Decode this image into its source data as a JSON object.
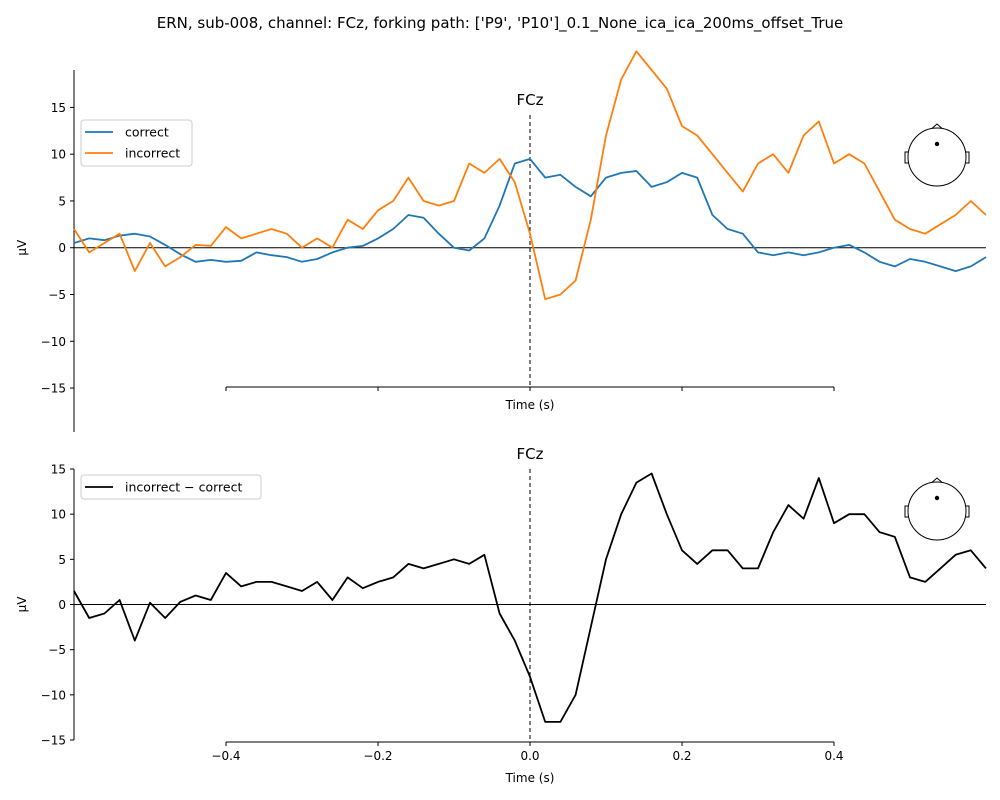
{
  "figure_title": "ERN, sub-008, channel: FCz, forking path: ['P9', 'P10']_0.1_None_ica_ica_200ms_offset_True",
  "chart_data": [
    {
      "type": "line",
      "title": "FCz",
      "xlabel": "Time (s)",
      "ylabel": "µV",
      "xlim": [
        -0.6,
        0.6
      ],
      "ylim": [
        -20,
        20
      ],
      "xticks": [
        -0.4,
        -0.2,
        0.0,
        0.2,
        0.4
      ],
      "xtick_labels": [
        "",
        "",
        "",
        "",
        ""
      ],
      "yticks": [
        -15,
        -10,
        -5,
        0,
        5,
        10,
        15
      ],
      "ytick_labels": [
        "−15",
        "−10",
        "−5",
        "0",
        "5",
        "10",
        "15"
      ],
      "event_marker_x": 0.0,
      "zero_line": true,
      "legend_position": "top-left",
      "sensor_inset": "top-right",
      "series": [
        {
          "name": "correct",
          "color": "#1f77b4",
          "x": [
            -0.6,
            -0.58,
            -0.56,
            -0.54,
            -0.52,
            -0.5,
            -0.48,
            -0.46,
            -0.44,
            -0.42,
            -0.4,
            -0.38,
            -0.36,
            -0.34,
            -0.32,
            -0.3,
            -0.28,
            -0.26,
            -0.24,
            -0.22,
            -0.2,
            -0.18,
            -0.16,
            -0.14,
            -0.12,
            -0.1,
            -0.08,
            -0.06,
            -0.04,
            -0.02,
            0.0,
            0.02,
            0.04,
            0.06,
            0.08,
            0.1,
            0.12,
            0.14,
            0.16,
            0.18,
            0.2,
            0.22,
            0.24,
            0.26,
            0.28,
            0.3,
            0.32,
            0.34,
            0.36,
            0.38,
            0.4,
            0.42,
            0.44,
            0.46,
            0.48,
            0.5,
            0.52,
            0.54,
            0.56,
            0.58,
            0.6
          ],
          "values": [
            0.5,
            1.0,
            0.8,
            1.3,
            1.5,
            1.2,
            0.3,
            -0.7,
            -1.5,
            -1.3,
            -1.5,
            -1.4,
            -0.5,
            -0.8,
            -1.0,
            -1.5,
            -1.2,
            -0.5,
            0.0,
            0.2,
            1.0,
            2.0,
            3.5,
            3.2,
            1.5,
            0.0,
            -0.3,
            1.0,
            4.5,
            9.0,
            9.5,
            7.5,
            7.8,
            6.5,
            5.5,
            7.5,
            8.0,
            8.2,
            6.5,
            7.0,
            8.0,
            7.5,
            3.5,
            2.0,
            1.5,
            -0.5,
            -0.8,
            -0.5,
            -0.8,
            -0.5,
            0.0,
            0.3,
            -0.5,
            -1.5,
            -2.0,
            -1.2,
            -1.5,
            -2.0,
            -2.5,
            -2.0,
            -1.0
          ]
        },
        {
          "name": "incorrect",
          "color": "#ff7f0e",
          "x": [
            -0.6,
            -0.58,
            -0.56,
            -0.54,
            -0.52,
            -0.5,
            -0.48,
            -0.46,
            -0.44,
            -0.42,
            -0.4,
            -0.38,
            -0.36,
            -0.34,
            -0.32,
            -0.3,
            -0.28,
            -0.26,
            -0.24,
            -0.22,
            -0.2,
            -0.18,
            -0.16,
            -0.14,
            -0.12,
            -0.1,
            -0.08,
            -0.06,
            -0.04,
            -0.02,
            0.0,
            0.02,
            0.04,
            0.06,
            0.08,
            0.1,
            0.12,
            0.14,
            0.16,
            0.18,
            0.2,
            0.22,
            0.24,
            0.26,
            0.28,
            0.3,
            0.32,
            0.34,
            0.36,
            0.38,
            0.4,
            0.42,
            0.44,
            0.46,
            0.48,
            0.5,
            0.52,
            0.54,
            0.56,
            0.58,
            0.6
          ],
          "values": [
            2.0,
            -0.5,
            0.5,
            1.5,
            -2.5,
            0.5,
            -2.0,
            -1.0,
            0.3,
            0.2,
            2.2,
            1.0,
            1.5,
            2.0,
            1.5,
            0.0,
            1.0,
            0.0,
            3.0,
            2.0,
            4.0,
            5.0,
            7.5,
            5.0,
            4.5,
            5.0,
            9.0,
            8.0,
            9.5,
            7.0,
            1.5,
            -5.5,
            -5.0,
            -3.5,
            3.0,
            12.0,
            18.0,
            21.0,
            19.0,
            17.0,
            13.0,
            12.0,
            10.0,
            8.0,
            6.0,
            9.0,
            10.0,
            8.0,
            12.0,
            13.5,
            9.0,
            10.0,
            9.0,
            6.0,
            3.0,
            2.0,
            1.5,
            2.5,
            3.5,
            5.0,
            3.5
          ]
        }
      ]
    },
    {
      "type": "line",
      "title": "FCz",
      "xlabel": "Time (s)",
      "ylabel": "µV",
      "xlim": [
        -0.6,
        0.6
      ],
      "ylim": [
        -15,
        15
      ],
      "xticks": [
        -0.4,
        -0.2,
        0.0,
        0.2,
        0.4
      ],
      "xtick_labels": [
        "−0.4",
        "−0.2",
        "0.0",
        "0.2",
        "0.4"
      ],
      "yticks": [
        -15,
        -10,
        -5,
        0,
        5,
        10,
        15
      ],
      "ytick_labels": [
        "−15",
        "−10",
        "−5",
        "0",
        "5",
        "10",
        "15"
      ],
      "event_marker_x": 0.0,
      "zero_line": true,
      "legend_position": "top-left",
      "sensor_inset": "top-right",
      "series": [
        {
          "name": "incorrect − correct",
          "color": "#000000",
          "x": [
            -0.6,
            -0.58,
            -0.56,
            -0.54,
            -0.52,
            -0.5,
            -0.48,
            -0.46,
            -0.44,
            -0.42,
            -0.4,
            -0.38,
            -0.36,
            -0.34,
            -0.32,
            -0.3,
            -0.28,
            -0.26,
            -0.24,
            -0.22,
            -0.2,
            -0.18,
            -0.16,
            -0.14,
            -0.12,
            -0.1,
            -0.08,
            -0.06,
            -0.04,
            -0.02,
            0.0,
            0.02,
            0.04,
            0.06,
            0.08,
            0.1,
            0.12,
            0.14,
            0.16,
            0.18,
            0.2,
            0.22,
            0.24,
            0.26,
            0.28,
            0.3,
            0.32,
            0.34,
            0.36,
            0.38,
            0.4,
            0.42,
            0.44,
            0.46,
            0.48,
            0.5,
            0.52,
            0.54,
            0.56,
            0.58,
            0.6
          ],
          "values": [
            1.5,
            -1.5,
            -1.0,
            0.5,
            -4.0,
            0.2,
            -1.5,
            0.3,
            1.0,
            0.5,
            3.5,
            2.0,
            2.5,
            2.5,
            2.0,
            1.5,
            2.5,
            0.5,
            3.0,
            1.8,
            2.5,
            3.0,
            4.5,
            4.0,
            4.5,
            5.0,
            4.5,
            5.5,
            -1.0,
            -4.0,
            -8.0,
            -13.0,
            -13.0,
            -10.0,
            -2.5,
            5.0,
            10.0,
            13.5,
            14.5,
            10.0,
            6.0,
            4.5,
            6.0,
            6.0,
            4.0,
            4.0,
            8.0,
            11.0,
            9.5,
            14.0,
            9.0,
            10.0,
            10.0,
            8.0,
            7.5,
            3.0,
            2.5,
            4.0,
            5.5,
            6.0,
            4.0
          ]
        }
      ]
    }
  ]
}
